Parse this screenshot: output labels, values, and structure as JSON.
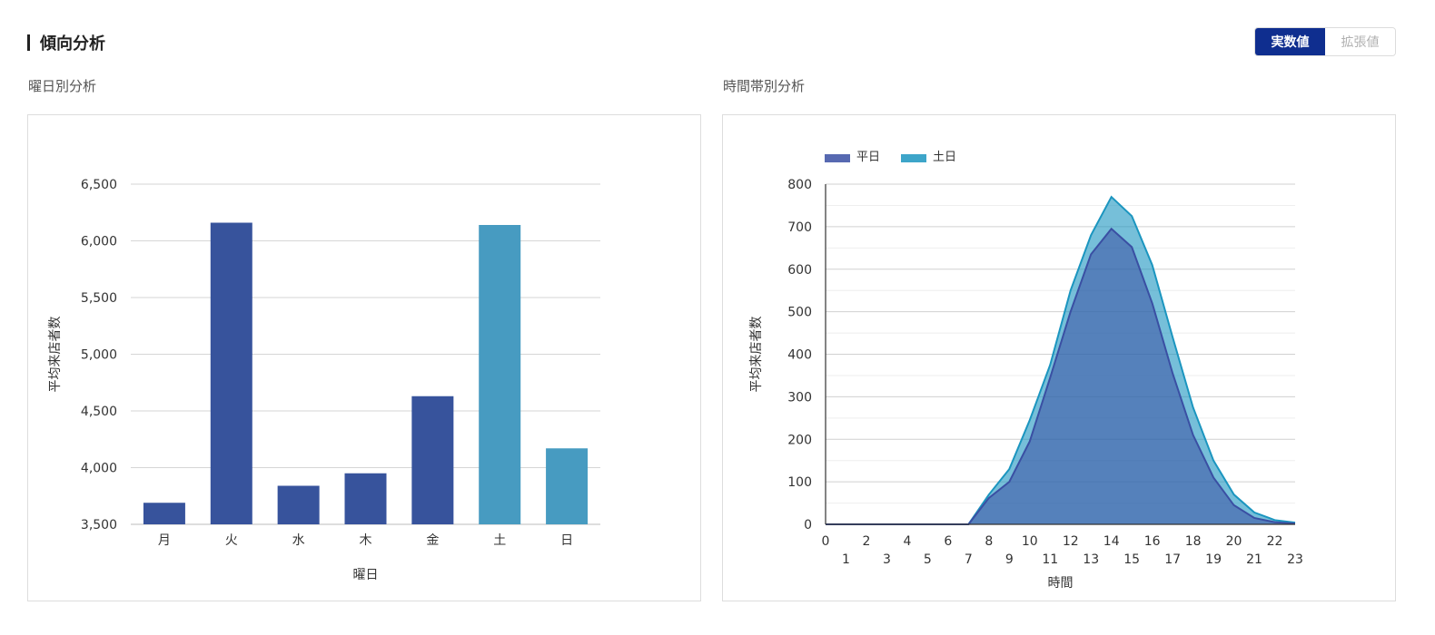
{
  "header": {
    "title": "傾向分析"
  },
  "toggle": {
    "options": [
      "実数値",
      "拡張値"
    ],
    "active": 0
  },
  "charts": {
    "weekday": {
      "subtitle": "曜日別分析"
    },
    "hourly": {
      "subtitle": "時間帯別分析"
    }
  },
  "colors": {
    "weekday": "#37539c",
    "weekend": "#479bc1",
    "area_weekday": "#3a4fa3",
    "area_weekend": "#1b95bf",
    "accent": "#0f2e8f"
  },
  "chart_data": [
    {
      "type": "bar",
      "categories": [
        "月",
        "火",
        "水",
        "木",
        "金",
        "土",
        "日"
      ],
      "values": [
        3690,
        6160,
        3840,
        3950,
        4630,
        6140,
        4170
      ],
      "bar_colors": [
        "#37539c",
        "#37539c",
        "#37539c",
        "#37539c",
        "#37539c",
        "#479bc1",
        "#479bc1"
      ],
      "ylim": [
        3500,
        6500
      ],
      "yticks": [
        3500,
        4000,
        4500,
        5000,
        5500,
        6000,
        6500
      ],
      "ytick_labels": [
        "3,500",
        "4,000",
        "4,500",
        "5,000",
        "5,500",
        "6,000",
        "6,500"
      ],
      "xlabel": "曜日",
      "ylabel": "平均来店者数",
      "grid": true
    },
    {
      "type": "area",
      "x": [
        0,
        1,
        2,
        3,
        4,
        5,
        6,
        7,
        8,
        9,
        10,
        11,
        12,
        13,
        14,
        15,
        16,
        17,
        18,
        19,
        20,
        21,
        22,
        23
      ],
      "series": [
        {
          "name": "平日",
          "color": "#3a4fa3",
          "values": [
            0,
            0,
            0,
            0,
            0,
            0,
            0,
            0,
            62,
            100,
            195,
            345,
            500,
            635,
            695,
            652,
            520,
            355,
            210,
            110,
            45,
            15,
            5,
            2
          ]
        },
        {
          "name": "土日",
          "color": "#1b95bf",
          "values": [
            0,
            0,
            0,
            0,
            0,
            0,
            0,
            0,
            70,
            130,
            245,
            375,
            550,
            680,
            770,
            725,
            610,
            440,
            275,
            150,
            70,
            28,
            10,
            4
          ]
        }
      ],
      "ylim": [
        0,
        800
      ],
      "yticks": [
        0,
        100,
        200,
        300,
        400,
        500,
        600,
        700,
        800
      ],
      "xlabel": "時間",
      "ylabel": "平均来店者数",
      "legend": "top-left",
      "grid": true
    }
  ]
}
